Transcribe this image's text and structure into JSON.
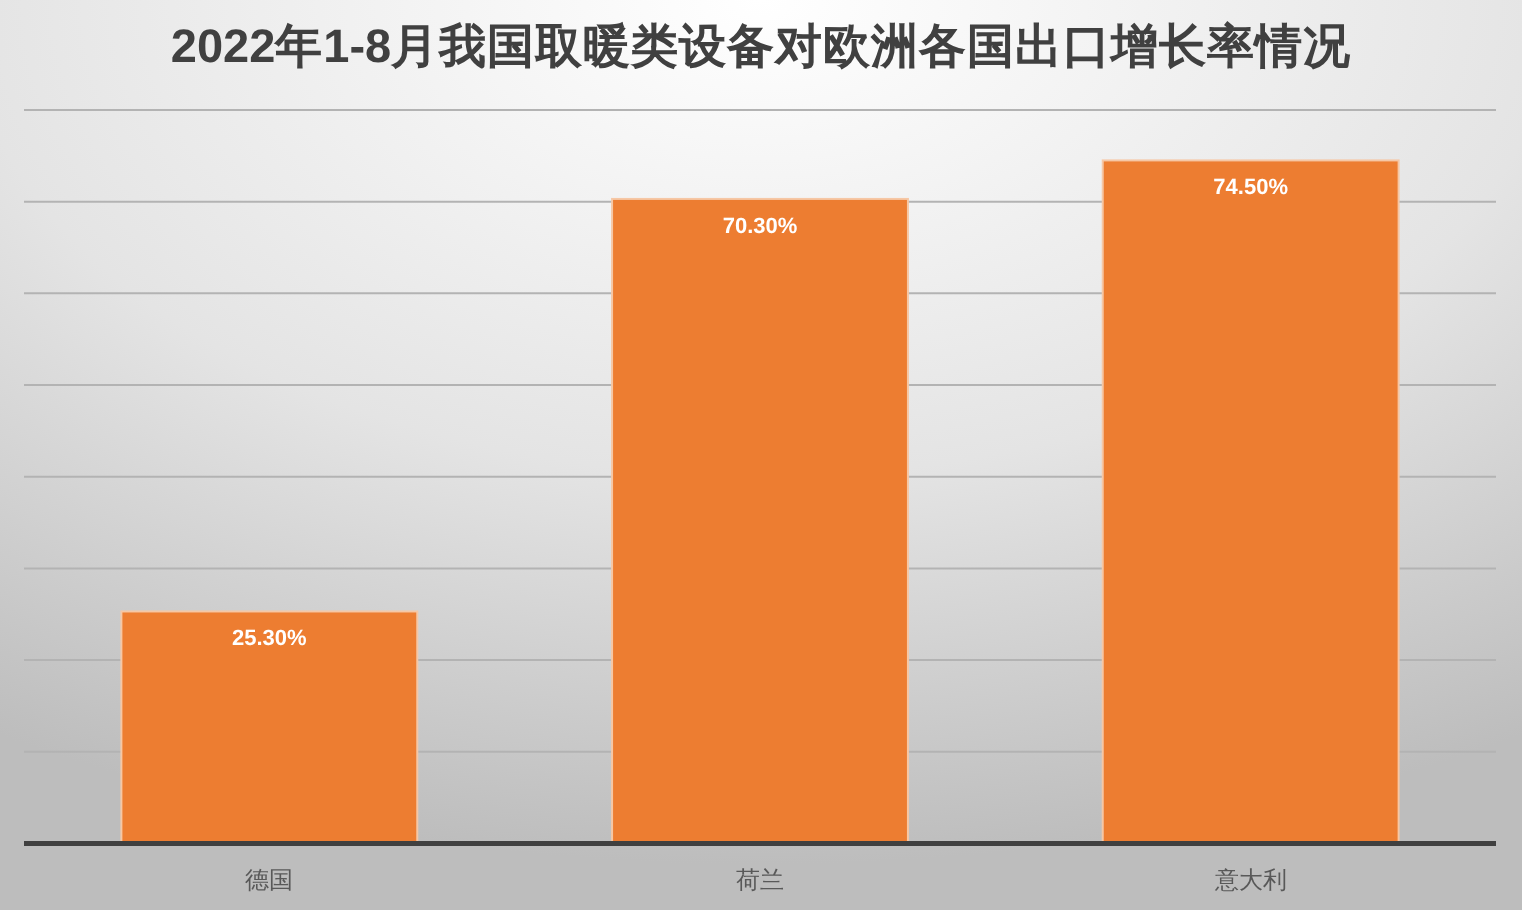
{
  "chart_data": {
    "type": "bar",
    "title": "2022年1-8月我国取暖类设备对欧洲各国出口增长率情况",
    "categories": [
      "德国",
      "荷兰",
      "意大利"
    ],
    "values": [
      25.3,
      70.3,
      74.5
    ],
    "value_labels": [
      "25.30%",
      "70.30%",
      "74.50%"
    ],
    "color": "#ed7d31",
    "ylim": [
      0,
      80
    ],
    "yticks": [
      {
        "value": 0,
        "label": null
      },
      {
        "value": 10,
        "label": null
      },
      {
        "value": 20,
        "label": null
      },
      {
        "value": 30,
        "label": null
      },
      {
        "value": 40,
        "label": null
      },
      {
        "value": 50,
        "label": null
      },
      {
        "value": 60,
        "label": null
      },
      {
        "value": 70,
        "label": null
      },
      {
        "value": 80,
        "label": null
      }
    ],
    "grid": "y",
    "tick_labels": "x"
  }
}
